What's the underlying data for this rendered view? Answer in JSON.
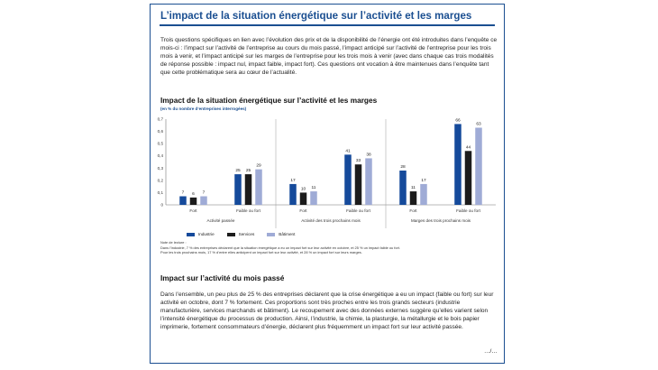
{
  "header": {
    "title": "L’impact de la situation énergétique sur l’activité et les marges"
  },
  "intro": {
    "text": "Trois questions spécifiques en lien avec l’évolution des prix et de la disponibilité de l’énergie ont été introduites dans l’enquête ce mois-ci : l’impact sur l’activité de l’entreprise au cours du mois passé, l’impact anticipé sur l’activité de l’entreprise pour les trois mois à venir, et l’impact anticipé sur les marges de l’entreprise pour les trois mois à venir (avec dans chaque cas trois modalités de réponse possible : impact nul, impact faible, impact fort). Ces questions ont vocation à être maintenues dans l’enquête tant que cette problématique sera au cœur de l’actualité."
  },
  "chart_title": "Impact de la situation énergétique sur l’activité et les marges",
  "chart_subtitle": "(en % du nombre d’entreprises interrogées)",
  "colors": {
    "industrie": "#154a9b",
    "services": "#1c1c1c",
    "batiment": "#9fabd6",
    "accent": "#1b4f91"
  },
  "chart_data": {
    "type": "bar",
    "ylim": [
      0,
      0.7
    ],
    "yticks": [
      "0",
      "0,1",
      "0,2",
      "0,3",
      "0,4",
      "0,5",
      "0,6",
      "0,7"
    ],
    "groups": [
      {
        "label": "Activité passée",
        "categories": [
          "Fort",
          "Faible ou fort"
        ]
      },
      {
        "label": "Activité des trois prochains mois",
        "categories": [
          "Fort",
          "Faible ou fort"
        ]
      },
      {
        "label": "Marges des trois prochains mois",
        "categories": [
          "Fort",
          "Faible ou fort"
        ]
      }
    ],
    "series": [
      {
        "name": "Industrie",
        "values": [
          7,
          25,
          17,
          41,
          28,
          66
        ],
        "color": "#154a9b"
      },
      {
        "name": "Services",
        "values": [
          6,
          25,
          10,
          33,
          11,
          44
        ],
        "color": "#1c1c1c"
      },
      {
        "name": "Bâtiment",
        "values": [
          7,
          29,
          11,
          38,
          17,
          63
        ],
        "color": "#9fabd6"
      }
    ],
    "legend_position": "bottom-left"
  },
  "notes": {
    "title": "Note de lecture :",
    "line1": "Dans l’industrie, 7 % des entreprises déclarent que la situation énergétique a eu un impact fort sur leur activité en octobre, et 25 % un impact faible ou fort.",
    "line2": "Pour les trois prochains mois, 17 % d’entre elles anticipent un impact fort sur leur activité, et 28 % un impact fort sur leurs marges."
  },
  "section": {
    "title": "Impact sur l’activité du mois passé",
    "text": "Dans l’ensemble, un peu plus de 25 % des entreprises déclarent que la crise énergétique a eu un impact (faible ou fort) sur leur activité en octobre, dont 7 % fortement. Ces proportions sont très proches entre les trois grands secteurs (industrie manufacturière, services marchands et bâtiment). Le recoupement avec des données externes suggère qu’elles varient selon l’intensité énergétique du processus de production. Ainsi, l’industrie, la chimie, la plasturgie, la métallurgie et le bois papier imprimerie, fortement consommateurs d’énergie, déclarent plus fréquemment un impact fort sur leur activité passée."
  },
  "continuation": "…/…"
}
